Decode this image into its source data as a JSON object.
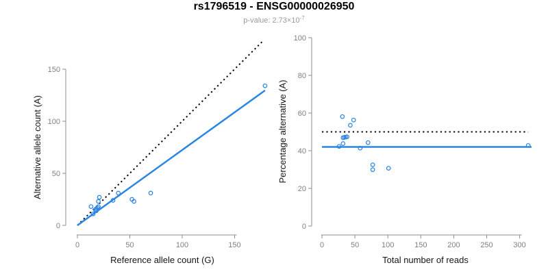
{
  "header": {
    "title": "rs1796519 - ENSG00000026950",
    "subtitle_prefix": "p-value: 2.73×10",
    "subtitle_exponent": "-7"
  },
  "colors": {
    "accent_blue": "#2b86e3",
    "point_blue": "#2e86df",
    "identity_black": "#000000",
    "axis_gray": "#8c8c8c",
    "tick_label_gray": "#7f7f7f",
    "axis_title_color": "#161616",
    "subtitle_gray": "#9a9a9a"
  },
  "chart_data": [
    {
      "type": "scatter",
      "panel": "left",
      "xlabel": "Reference allele count (G)",
      "ylabel": "Alternative allele count (A)",
      "xlim": [
        0,
        181
      ],
      "ylim": [
        0,
        180
      ],
      "xticks": [
        0,
        50,
        100,
        150
      ],
      "yticks": [
        0,
        50,
        100,
        150
      ],
      "grid": false,
      "legend": null,
      "points": [
        [
          13,
          18
        ],
        [
          15,
          11
        ],
        [
          17,
          15
        ],
        [
          18,
          14
        ],
        [
          18,
          16
        ],
        [
          19,
          17
        ],
        [
          20,
          18
        ],
        [
          20,
          23
        ],
        [
          21,
          27
        ],
        [
          34,
          24
        ],
        [
          39,
          31
        ],
        [
          52,
          25
        ],
        [
          54,
          23
        ],
        [
          70,
          31
        ],
        [
          179,
          134
        ]
      ],
      "lines": [
        {
          "name": "identity-line",
          "style": "dotted",
          "color": "#000000",
          "width": 2,
          "x1": 0,
          "y1": 0,
          "x2": 178,
          "y2": 178
        },
        {
          "name": "fit-line",
          "style": "solid",
          "color": "#2b86e3",
          "width": 2.5,
          "x1": 0,
          "y1": 0,
          "x2": 179,
          "y2": 129.6
        }
      ]
    },
    {
      "type": "scatter",
      "panel": "right",
      "xlabel": "Total number of reads",
      "ylabel": "Percentage alternative (A)",
      "xlim": [
        0,
        318
      ],
      "ylim": [
        0,
        100
      ],
      "xticks": [
        0,
        50,
        100,
        150,
        200,
        250,
        300
      ],
      "yticks": [
        0,
        20,
        40,
        60,
        80,
        100
      ],
      "grid": false,
      "legend": null,
      "points": [
        [
          26,
          42.3
        ],
        [
          31,
          58.1
        ],
        [
          32,
          43.8
        ],
        [
          32,
          46.9
        ],
        [
          34,
          47.1
        ],
        [
          36,
          47.2
        ],
        [
          38,
          47.4
        ],
        [
          43,
          53.5
        ],
        [
          48,
          56.3
        ],
        [
          58,
          41.4
        ],
        [
          70,
          44.3
        ],
        [
          77,
          32.5
        ],
        [
          77,
          29.9
        ],
        [
          101,
          30.7
        ],
        [
          313,
          42.8
        ]
      ],
      "lines": [
        {
          "name": "expected-50pct-line",
          "style": "dotted",
          "color": "#000000",
          "width": 2,
          "x1": 0,
          "y1": 50,
          "x2": 313,
          "y2": 50
        },
        {
          "name": "observed-ratio-line",
          "style": "solid",
          "color": "#2b86e3",
          "width": 2.5,
          "x1": 0,
          "y1": 42,
          "x2": 318,
          "y2": 42
        }
      ]
    }
  ]
}
